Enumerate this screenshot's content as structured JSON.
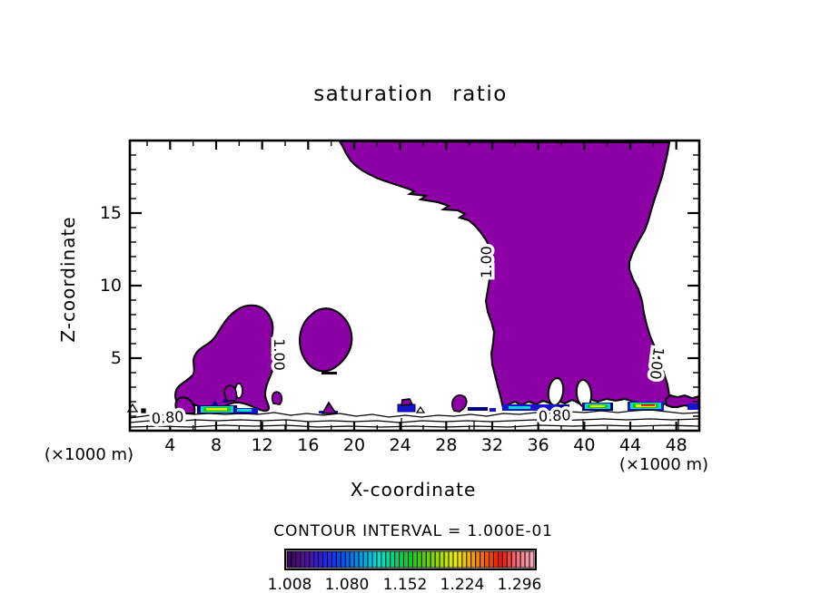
{
  "chart_data": {
    "type": "contour",
    "title": "saturation ratio",
    "x_axis": {
      "label": "X-coordinate",
      "units": "(×1000 m)",
      "range": [
        0.5,
        50
      ],
      "major_ticks": [
        4,
        8,
        12,
        16,
        20,
        24,
        28,
        32,
        36,
        40,
        44,
        48
      ],
      "minor_tick_step": 2
    },
    "z_axis": {
      "label": "Z-coordinate",
      "units": "(×1000 m)",
      "range": [
        0,
        20
      ],
      "major_ticks": [
        5,
        10,
        15
      ],
      "minor_tick_step": 1
    },
    "contour_interval_label": "CONTOUR INTERVAL = 1.000E-01",
    "contour_line_labels": {
      "low": "0.80",
      "high": "1.00"
    },
    "filled_regions": [
      {
        "name": "main-plume",
        "value": ">= 1.00",
        "color": "#8C00A6",
        "extent": "x ≈ 31-47 (×1000 m) from surface to top of domain, widening to x ≈ 18-47 near z = 20"
      },
      {
        "name": "left-cloud",
        "value": ">= 1.00",
        "color": "#8C00A6",
        "extent": "x ≈ 4-12.5, z ≈ 1-8.5"
      },
      {
        "name": "small-round-cloud",
        "value": ">= 1.00",
        "color": "#8C00A6",
        "extent": "x ≈ 14.5-19.5, z ≈ 4-8.5"
      },
      {
        "name": "surface-supersaturation-patches",
        "value": "1.0-1.3",
        "color": "rainbow colorbar cells",
        "extent": "thin layer near z ≈ 1 around x ≈ 6-11, 24, 29-30, 32-37, 39-41, 43-46, 48-50"
      }
    ],
    "colorbar": {
      "tick_labels": [
        "1.008",
        "1.080",
        "1.152",
        "1.224",
        "1.296"
      ],
      "n_cells": 55,
      "color_stops": [
        "#38085E",
        "#56109A",
        "#3318DC",
        "#1038F0",
        "#0070EC",
        "#00B0E4",
        "#00E2CC",
        "#00D478",
        "#12C81E",
        "#5ECE00",
        "#AADC00",
        "#ECEC00",
        "#F4A800",
        "#F45800",
        "#EC1408",
        "#F4707C",
        "#F4A4B4"
      ]
    },
    "colors": {
      "saturated_fill": "#8C00A6",
      "stripe_blue": "#1414CC",
      "stripe_navy": "#000080",
      "stripe_cyan": "#00DCD0",
      "stripe_green": "#18C818",
      "stripe_yellow": "#ECEC00",
      "stripe_red": "#E81000",
      "frame": "#000000",
      "background": "#FFFFFF"
    }
  }
}
